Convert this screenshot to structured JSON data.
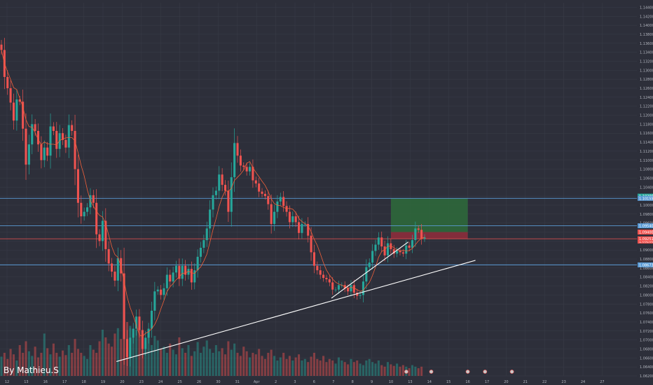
{
  "watermark": "By Mathieu.S",
  "colors": {
    "background": "#2d2f3a",
    "grid": "#3a3d49",
    "up": "#26a69a",
    "down": "#ef5350",
    "ma": "#f0603a",
    "hline": "#5b9bd5",
    "trendline": "#ffffff",
    "target_zone": "#2e6b3b",
    "stop_zone": "#8c2e3c"
  },
  "chart_data": {
    "type": "candlestick",
    "y_axis": {
      "min": 1.062,
      "max": 1.145,
      "ticks": [
        "1.14400",
        "1.14200",
        "1.14000",
        "1.13800",
        "1.13600",
        "1.13400",
        "1.13200",
        "1.13000",
        "1.12800",
        "1.12600",
        "1.12400",
        "1.12200",
        "1.12000",
        "1.11800",
        "1.11600",
        "1.11400",
        "1.11200",
        "1.11000",
        "1.10800",
        "1.10600",
        "1.10400",
        "1.10200",
        "1.10000",
        "1.09800",
        "1.09600",
        "1.09400",
        "1.09200",
        "1.09000",
        "1.08800",
        "1.08600",
        "1.08400",
        "1.08200",
        "1.08000",
        "1.07800",
        "1.07600",
        "1.07400",
        "1.07200",
        "1.07000",
        "1.06800",
        "1.06600",
        "1.06400",
        "1.06200"
      ]
    },
    "x_axis": {
      "ticks": [
        "12",
        "13",
        "16",
        "17",
        "18",
        "19",
        "20",
        "23",
        "24",
        "25",
        "26",
        "30",
        "31",
        "Apr",
        "2",
        "3",
        "6",
        "7",
        "8",
        "9",
        "10",
        "13",
        "14",
        "15",
        "16",
        "17",
        "20",
        "21",
        "22",
        "23",
        "24",
        "27"
      ]
    },
    "price_levels": [
      {
        "value": 1.1015,
        "label": "1.10155",
        "style": "line"
      },
      {
        "value": 1.0954,
        "label": "1.09540",
        "style": "line"
      },
      {
        "value": 1.0925,
        "label": "1.09251",
        "style": "current"
      },
      {
        "value": 1.0867,
        "label": "1.08673",
        "style": "line"
      }
    ],
    "extra_labels": [
      "1.10200",
      "1.09400",
      "1.09200"
    ],
    "position": {
      "entry": 1.0925,
      "target": 1.1015,
      "stop": 1.094,
      "start_index": 20,
      "end_index": 24
    },
    "trendlines": [
      {
        "from": {
          "index": 5.7,
          "price": 1.0652
        },
        "to": {
          "index": 24.4,
          "price": 1.0877
        }
      },
      {
        "from": {
          "index": 16.9,
          "price": 1.0793
        },
        "to": {
          "index": 20.9,
          "price": 1.0918
        }
      }
    ],
    "closes": [
      1.1345,
      1.1285,
      1.126,
      1.1228,
      1.1188,
      1.1235,
      1.123,
      1.117,
      1.109,
      1.1135,
      1.118,
      1.1165,
      1.1135,
      1.11,
      1.1128,
      1.111,
      1.1175,
      1.1165,
      1.1125,
      1.116,
      1.1145,
      1.1128,
      1.1178,
      1.1165,
      1.108,
      1.1005,
      1.0975,
      1.0985,
      1.0995,
      1.1022,
      1.1005,
      1.0935,
      1.092,
      1.0965,
      1.0902,
      1.087,
      1.0852,
      1.0832,
      1.0882,
      1.0848,
      1.0702,
      1.0662,
      1.0705,
      1.0725,
      1.0752,
      1.0722,
      1.068,
      1.0705,
      1.0725,
      1.0765,
      1.0808,
      1.0812,
      1.08,
      1.0815,
      1.0845,
      1.083,
      1.085,
      1.0865,
      1.0836,
      1.0865,
      1.0845,
      1.0858,
      1.0828,
      1.0855,
      1.0885,
      1.0905,
      1.0922,
      1.0948,
      1.099,
      1.1022,
      1.1032,
      1.1068,
      1.1045,
      1.1032,
      1.0985,
      1.1062,
      1.1138,
      1.111,
      1.1088,
      1.1085,
      1.1075,
      1.1085,
      1.1055,
      1.1048,
      1.103,
      1.1025,
      1.102,
      1.1002,
      1.0958,
      1.0985,
      1.1008,
      1.1018,
      1.0998,
      1.0985,
      1.0962,
      1.0975,
      1.0962,
      1.0938,
      1.0958,
      1.0958,
      1.0932,
      1.0895,
      1.0865,
      1.0855,
      1.0845,
      1.0838,
      1.0835,
      1.0828,
      1.0812,
      1.0812,
      1.0822,
      1.0822,
      1.0815,
      1.0808,
      1.0822,
      1.0805,
      1.0798,
      1.08,
      1.083,
      1.0862,
      1.0872,
      1.0898,
      1.0912,
      1.0928,
      1.0908,
      1.0888,
      1.0915,
      1.0902,
      1.0892,
      1.0898,
      1.0895,
      1.0892,
      1.091,
      1.0905,
      1.0922,
      1.0948,
      1.0945,
      1.0925,
      1.0928
    ],
    "volume_relative": [
      0.25,
      0.3,
      0.22,
      0.35,
      0.28,
      0.2,
      0.4,
      0.3,
      0.45,
      0.32,
      0.26,
      0.38,
      0.24,
      0.3,
      0.55,
      0.36,
      0.28,
      0.42,
      0.3,
      0.25,
      0.33,
      0.27,
      0.4,
      0.3,
      0.48,
      0.35,
      0.3,
      0.26,
      0.22,
      0.4,
      0.34,
      0.3,
      0.45,
      0.6,
      0.5,
      0.42,
      0.38,
      0.55,
      0.62,
      0.48,
      0.8,
      0.7,
      0.65,
      0.55,
      0.6,
      0.72,
      0.5,
      0.45,
      0.58,
      0.4,
      0.52,
      0.46,
      0.35,
      0.38,
      0.3,
      0.42,
      0.34,
      0.28,
      0.5,
      0.36,
      0.3,
      0.4,
      0.26,
      0.32,
      0.44,
      0.3,
      0.38,
      0.46,
      0.35,
      0.3,
      0.4,
      0.32,
      0.36,
      0.28,
      0.45,
      0.34,
      0.42,
      0.3,
      0.26,
      0.38,
      0.32,
      0.24,
      0.3,
      0.28,
      0.35,
      0.26,
      0.22,
      0.3,
      0.34,
      0.26,
      0.2,
      0.24,
      0.3,
      0.22,
      0.26,
      0.2,
      0.24,
      0.28,
      0.2,
      0.22,
      0.18,
      0.25,
      0.3,
      0.22,
      0.2,
      0.26,
      0.18,
      0.22,
      0.2,
      0.16,
      0.24,
      0.2,
      0.18,
      0.15,
      0.22,
      0.18,
      0.2,
      0.16,
      0.14,
      0.2,
      0.22,
      0.18,
      0.16,
      0.2,
      0.14,
      0.12,
      0.18,
      0.15,
      0.13,
      0.16,
      0.12,
      0.14,
      0.12,
      0.1,
      0.14,
      0.12,
      0.1,
      0.12
    ]
  }
}
